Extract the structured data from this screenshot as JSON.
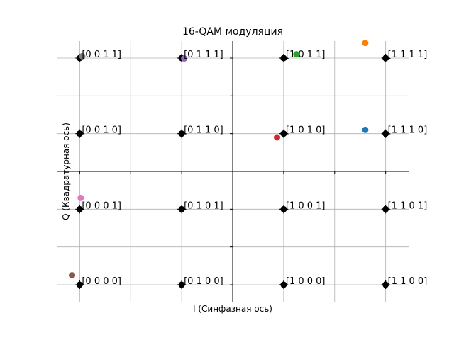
{
  "chart_data": {
    "type": "scatter",
    "title": "16-QAM модуляция",
    "xlabel": "I (Синфазная ось)",
    "ylabel": "Q (Квадратурная ось)",
    "xlim": [
      -3.45,
      3.45
    ],
    "ylim": [
      -3.45,
      3.45
    ],
    "xticks": [
      -3,
      -2,
      -1,
      0,
      1,
      2,
      3
    ],
    "yticks": [
      -3,
      -2,
      -1,
      0,
      1,
      2,
      3
    ],
    "grid": true,
    "constellation": [
      {
        "i": -3,
        "q": 3,
        "label": "[0 0 1 1]"
      },
      {
        "i": -1,
        "q": 3,
        "label": "[0 1 1 1]"
      },
      {
        "i": 1,
        "q": 3,
        "label": "[1 0 1 1]"
      },
      {
        "i": 3,
        "q": 3,
        "label": "[1 1 1 1]"
      },
      {
        "i": -3,
        "q": 1,
        "label": "[0 0 1 0]"
      },
      {
        "i": -1,
        "q": 1,
        "label": "[0 1 1 0]"
      },
      {
        "i": 1,
        "q": 1,
        "label": "[1 0 1 0]"
      },
      {
        "i": 3,
        "q": 1,
        "label": "[1 1 1 0]"
      },
      {
        "i": -3,
        "q": -1,
        "label": "[0 0 0 1]"
      },
      {
        "i": -1,
        "q": -1,
        "label": "[0 1 0 1]"
      },
      {
        "i": 1,
        "q": -1,
        "label": "[1 0 0 1]"
      },
      {
        "i": 3,
        "q": -1,
        "label": "[1 1 0 1]"
      },
      {
        "i": -3,
        "q": -3,
        "label": "[0 0 0 0]"
      },
      {
        "i": -1,
        "q": -3,
        "label": "[0 1 0 0]"
      },
      {
        "i": 1,
        "q": -3,
        "label": "[1 0 0 0]"
      },
      {
        "i": 3,
        "q": -3,
        "label": "[1 1 0 0]"
      }
    ],
    "received_points": [
      {
        "i": 2.6,
        "q": 1.1,
        "color": "#1f77b4"
      },
      {
        "i": 2.6,
        "q": 3.4,
        "color": "#ff7f0e"
      },
      {
        "i": 1.25,
        "q": 3.1,
        "color": "#2ca02c"
      },
      {
        "i": 0.87,
        "q": 0.9,
        "color": "#d62728"
      },
      {
        "i": -0.95,
        "q": 2.99,
        "color": "#9467bd"
      },
      {
        "i": -3.15,
        "q": -2.75,
        "color": "#8c564b"
      },
      {
        "i": -2.98,
        "q": -0.7,
        "color": "#e377c2"
      },
      {
        "i": -2.95,
        "q": 3.05,
        "color": "#7f7f7f"
      }
    ],
    "constellation_color": "#000000"
  }
}
